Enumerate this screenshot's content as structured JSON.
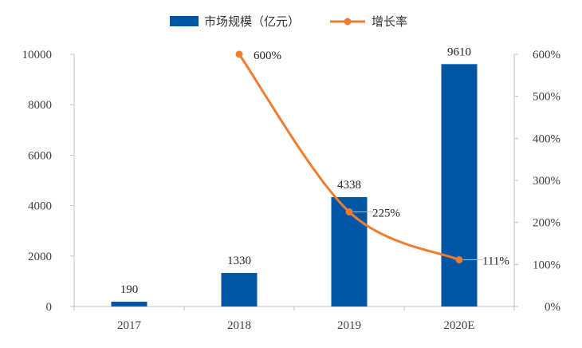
{
  "chart_data": {
    "type": "bar",
    "categories": [
      "2017",
      "2018",
      "2019",
      "2020E"
    ],
    "series": [
      {
        "name": "市场规模（亿元）",
        "kind": "bar",
        "axis": "left",
        "values": [
          190,
          1330,
          4338,
          9610
        ],
        "labels": [
          "190",
          "1330",
          "4338",
          "9610"
        ]
      },
      {
        "name": "增长率",
        "kind": "line",
        "axis": "right",
        "values": [
          null,
          600,
          225,
          111
        ],
        "labels": [
          "",
          "600%",
          "225%",
          "111%"
        ]
      }
    ],
    "y_left": {
      "ylim": [
        0,
        10000
      ],
      "ticks": [
        "0",
        "2000",
        "4000",
        "6000",
        "8000",
        "10000"
      ]
    },
    "y_right": {
      "ylim": [
        0,
        600
      ],
      "ticks": [
        "0%",
        "100%",
        "200%",
        "300%",
        "400%",
        "500%",
        "600%"
      ]
    },
    "legend": "top-center",
    "grid": false,
    "colors": {
      "bar": "#0055A4",
      "line": "#ED7D31",
      "axis": "#BFBFBF"
    }
  }
}
